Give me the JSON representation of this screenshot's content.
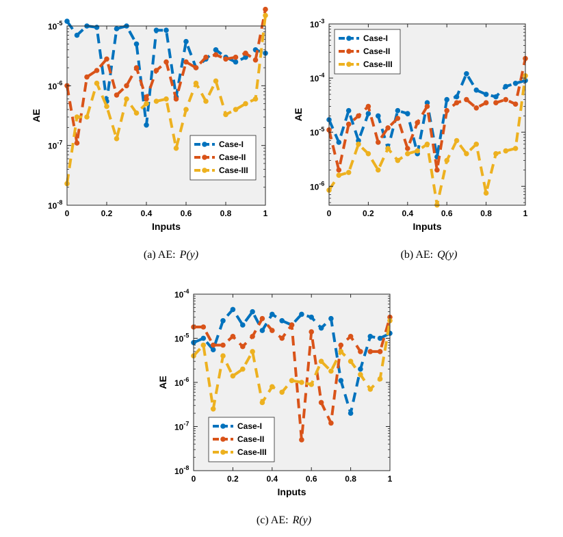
{
  "chart_data": [
    {
      "type": "line",
      "caption": {
        "label": "(a) AE:",
        "func": "P(y)"
      },
      "xlabel": "Inputs",
      "ylabel": "AE",
      "xlim": [
        0,
        1
      ],
      "ylim_exp": [
        -8,
        -5
      ],
      "yscale": "log",
      "xticks": [
        "0",
        "0.2",
        "0.4",
        "0.6",
        "0.8",
        "1"
      ],
      "yticks": [
        {
          "base": "10",
          "exp": "-8"
        },
        {
          "base": "10",
          "exp": "-7"
        },
        {
          "base": "10",
          "exp": "-6"
        },
        {
          "base": "10",
          "exp": "-5"
        }
      ],
      "legend_position": "bottom-right",
      "grid": false,
      "series": [
        {
          "name": "Case-I",
          "color": "#0072BD",
          "x": [
            0,
            0.05,
            0.1,
            0.15,
            0.2,
            0.25,
            0.3,
            0.35,
            0.4,
            0.45,
            0.5,
            0.55,
            0.6,
            0.65,
            0.7,
            0.75,
            0.8,
            0.85,
            0.9,
            0.95,
            1.0
          ],
          "y": [
            1.2e-05,
            7e-06,
            1e-05,
            9.5e-06,
            5.5e-07,
            9e-06,
            1e-05,
            5e-06,
            2.2e-07,
            8.5e-06,
            8.5e-06,
            6.5e-07,
            5.5e-06,
            2e-06,
            2.8e-06,
            4e-06,
            3e-06,
            2.5e-06,
            3e-06,
            4e-06,
            3.5e-06
          ]
        },
        {
          "name": "Case-II",
          "color": "#D95319",
          "x": [
            0,
            0.05,
            0.1,
            0.15,
            0.2,
            0.25,
            0.3,
            0.35,
            0.4,
            0.45,
            0.5,
            0.55,
            0.6,
            0.65,
            0.7,
            0.75,
            0.8,
            0.85,
            0.9,
            0.95,
            1.0
          ],
          "y": [
            1e-06,
            1.1e-07,
            1.4e-06,
            1.8e-06,
            2.8e-06,
            7e-07,
            1e-06,
            2e-06,
            6e-07,
            1.8e-06,
            2.5e-06,
            6e-07,
            2.5e-06,
            2e-06,
            3e-06,
            3.3e-06,
            2.8e-06,
            3e-06,
            3.5e-06,
            2.7e-06,
            1.9e-05
          ]
        },
        {
          "name": "Case-III",
          "color": "#EDB120",
          "x": [
            0,
            0.05,
            0.1,
            0.15,
            0.2,
            0.25,
            0.3,
            0.35,
            0.4,
            0.45,
            0.5,
            0.55,
            0.6,
            0.65,
            0.7,
            0.75,
            0.8,
            0.85,
            0.9,
            0.95,
            1.0
          ],
          "y": [
            2.3e-08,
            3e-07,
            3e-07,
            1.1e-06,
            4.5e-07,
            1.3e-07,
            6e-07,
            3.5e-07,
            5e-07,
            5.5e-07,
            6e-07,
            9e-08,
            4e-07,
            1.1e-06,
            5.5e-07,
            1.2e-06,
            3.3e-07,
            4e-07,
            5e-07,
            6e-07,
            1.5e-05
          ]
        }
      ]
    },
    {
      "type": "line",
      "caption": {
        "label": "(b) AE:",
        "func": "Q(y)"
      },
      "xlabel": "Inputs",
      "ylabel": "AE",
      "xlim": [
        0,
        1
      ],
      "ylim_exp": [
        -6.35,
        -3
      ],
      "yscale": "log",
      "xticks": [
        "0",
        "0.2",
        "0.4",
        "0.6",
        "0.8",
        "1"
      ],
      "yticks": [
        {
          "base": "10",
          "exp": "-6"
        },
        {
          "base": "10",
          "exp": "-5"
        },
        {
          "base": "10",
          "exp": "-4"
        },
        {
          "base": "10",
          "exp": "-3"
        }
      ],
      "legend_position": "top-left",
      "grid": false,
      "series": [
        {
          "name": "Case-I",
          "color": "#0072BD",
          "x": [
            0,
            0.05,
            0.1,
            0.15,
            0.2,
            0.25,
            0.3,
            0.35,
            0.4,
            0.45,
            0.5,
            0.55,
            0.6,
            0.65,
            0.7,
            0.75,
            0.8,
            0.85,
            0.9,
            0.95,
            1.0
          ],
          "y": [
            1.7e-05,
            6.5e-06,
            2.5e-05,
            7e-06,
            2.2e-05,
            2e-05,
            5e-06,
            2.5e-05,
            2.2e-05,
            4e-06,
            3.5e-05,
            3.5e-06,
            4e-05,
            4.5e-05,
            0.00012,
            6e-05,
            5e-05,
            4.5e-05,
            7e-05,
            8e-05,
            9e-05
          ]
        },
        {
          "name": "Case-II",
          "color": "#D95319",
          "x": [
            0,
            0.05,
            0.1,
            0.15,
            0.2,
            0.25,
            0.3,
            0.35,
            0.4,
            0.45,
            0.5,
            0.55,
            0.6,
            0.65,
            0.7,
            0.75,
            0.8,
            0.85,
            0.9,
            0.95,
            1.0
          ],
          "y": [
            1.1e-05,
            2e-06,
            1.4e-05,
            2e-05,
            3e-05,
            6.5e-06,
            1.2e-05,
            1.8e-05,
            5e-06,
            1.5e-05,
            3e-05,
            2e-06,
            2.5e-05,
            3.5e-05,
            4e-05,
            2.8e-05,
            3.5e-05,
            3.5e-05,
            4e-05,
            3.3e-05,
            0.00023
          ]
        },
        {
          "name": "Case-III",
          "color": "#EDB120",
          "x": [
            0,
            0.05,
            0.1,
            0.15,
            0.2,
            0.25,
            0.3,
            0.35,
            0.4,
            0.45,
            0.5,
            0.55,
            0.6,
            0.65,
            0.7,
            0.75,
            0.8,
            0.85,
            0.9,
            0.95,
            1.0
          ],
          "y": [
            8.5e-07,
            1.6e-06,
            1.8e-06,
            6e-06,
            4e-06,
            2e-06,
            5e-06,
            3e-06,
            4e-06,
            4.5e-06,
            6e-06,
            4.5e-07,
            3e-06,
            7e-06,
            4e-06,
            6e-06,
            7.5e-07,
            4e-06,
            4.5e-06,
            5e-06,
            0.00011
          ]
        }
      ]
    },
    {
      "type": "line",
      "caption": {
        "label": "(c) AE:",
        "func": "R(y)"
      },
      "xlabel": "Inputs",
      "ylabel": "AE",
      "xlim": [
        0,
        1
      ],
      "ylim_exp": [
        -8,
        -4
      ],
      "yscale": "log",
      "xticks": [
        "0",
        "0.2",
        "0.4",
        "0.6",
        "0.8",
        "1"
      ],
      "yticks": [
        {
          "base": "10",
          "exp": "-8"
        },
        {
          "base": "10",
          "exp": "-7"
        },
        {
          "base": "10",
          "exp": "-6"
        },
        {
          "base": "10",
          "exp": "-5"
        },
        {
          "base": "10",
          "exp": "-4"
        }
      ],
      "legend_position": "bottom-left",
      "grid": false,
      "series": [
        {
          "name": "Case-I",
          "color": "#0072BD",
          "x": [
            0,
            0.05,
            0.1,
            0.15,
            0.2,
            0.25,
            0.3,
            0.35,
            0.4,
            0.45,
            0.5,
            0.55,
            0.6,
            0.65,
            0.7,
            0.75,
            0.8,
            0.85,
            0.9,
            0.95,
            1.0
          ],
          "y": [
            8e-06,
            1e-05,
            5.5e-06,
            2.5e-05,
            4.5e-05,
            2e-05,
            4e-05,
            1.5e-05,
            3.5e-05,
            2.5e-05,
            2e-05,
            3.5e-05,
            3e-05,
            1.7e-05,
            2.8e-05,
            1.1e-06,
            2e-07,
            2e-06,
            1.1e-05,
            1e-05,
            1.3e-05
          ]
        },
        {
          "name": "Case-II",
          "color": "#D95319",
          "x": [
            0,
            0.05,
            0.1,
            0.15,
            0.2,
            0.25,
            0.3,
            0.35,
            0.4,
            0.45,
            0.5,
            0.55,
            0.6,
            0.65,
            0.7,
            0.75,
            0.8,
            0.85,
            0.9,
            0.95,
            1.0
          ],
          "y": [
            1.8e-05,
            1.8e-05,
            7e-06,
            7e-06,
            1.1e-05,
            6.5e-06,
            1.1e-05,
            2.8e-05,
            1.5e-05,
            1e-05,
            2e-05,
            5e-08,
            1.4e-05,
            3.5e-07,
            1.2e-07,
            7e-06,
            1.1e-05,
            5e-06,
            5e-06,
            5e-06,
            3e-05
          ]
        },
        {
          "name": "Case-III",
          "color": "#EDB120",
          "x": [
            0,
            0.05,
            0.1,
            0.15,
            0.2,
            0.25,
            0.3,
            0.35,
            0.4,
            0.45,
            0.5,
            0.55,
            0.6,
            0.65,
            0.7,
            0.75,
            0.8,
            0.85,
            0.9,
            0.95,
            1.0
          ],
          "y": [
            4e-06,
            7e-06,
            2.5e-07,
            4e-06,
            1.4e-06,
            2e-06,
            5e-06,
            3.5e-07,
            8e-07,
            6e-07,
            1.1e-06,
            1e-06,
            9e-07,
            3e-06,
            1.8e-06,
            5e-06,
            3e-06,
            1.5e-06,
            7e-07,
            1.2e-06,
            2.5e-05
          ]
        }
      ]
    }
  ]
}
